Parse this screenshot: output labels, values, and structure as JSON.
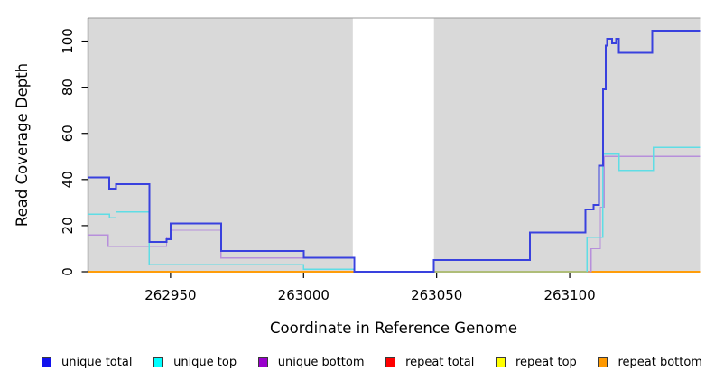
{
  "chart_data": {
    "type": "line",
    "step": "after",
    "title": "",
    "xlabel": "Coordinate in Reference Genome",
    "ylabel": "Read Coverage Depth",
    "xlim": [
      262919,
      263149
    ],
    "ylim": [
      0,
      110
    ],
    "x_ticks": [
      "262950",
      "263000",
      "263050",
      "263100"
    ],
    "x_tick_values": [
      262950,
      263000,
      263050,
      263100
    ],
    "y_ticks": [
      "0",
      "20",
      "40",
      "60",
      "80",
      "100"
    ],
    "y_tick_values": [
      0,
      20,
      40,
      60,
      80,
      100
    ],
    "grid": "off",
    "legend_position": "bottom",
    "plot_background": "#d9d9d9",
    "gap_region": {
      "x_start": 263018.5,
      "x_end": 263049,
      "fill": "#ffffff"
    },
    "draw_order": [
      "repeat total",
      "repeat top",
      "repeat bottom",
      "unique bottom",
      "unique top",
      "unique total"
    ],
    "series": [
      {
        "name": "unique total",
        "line_color": "#3941de",
        "legend_color": "#1111ee",
        "width": 2,
        "points": [
          [
            262919,
            41
          ],
          [
            262927,
            36
          ],
          [
            262929.5,
            38
          ],
          [
            262942,
            13
          ],
          [
            262948.5,
            14
          ],
          [
            262950,
            21
          ],
          [
            262969,
            9
          ],
          [
            263000,
            6
          ],
          [
            263019,
            0
          ],
          [
            263049,
            5
          ],
          [
            263085,
            17
          ],
          [
            263106,
            27
          ],
          [
            263109,
            29
          ],
          [
            263111,
            46
          ],
          [
            263112.5,
            79
          ],
          [
            263113.5,
            98
          ],
          [
            263114,
            101
          ],
          [
            263116,
            99
          ],
          [
            263117.5,
            101
          ],
          [
            263118.5,
            95
          ],
          [
            263131,
            104.5
          ],
          [
            263149,
            104.5
          ]
        ]
      },
      {
        "name": "unique top",
        "line_color": "#5fdde5",
        "legend_color": "#00ffff",
        "width": 1.4,
        "points": [
          [
            262919,
            25
          ],
          [
            262927,
            23.5
          ],
          [
            262929.5,
            26
          ],
          [
            262942,
            3
          ],
          [
            263000,
            1
          ],
          [
            263019,
            0
          ],
          [
            263106.5,
            15
          ],
          [
            263112.5,
            51
          ],
          [
            263118.5,
            44
          ],
          [
            263131.5,
            54
          ],
          [
            263149,
            54
          ]
        ]
      },
      {
        "name": "unique bottom",
        "line_color": "#b78fdb",
        "legend_color": "#9900cc",
        "width": 1.4,
        "points": [
          [
            262919,
            16
          ],
          [
            262926.5,
            11
          ],
          [
            262948.5,
            15
          ],
          [
            262950,
            18
          ],
          [
            262969,
            6
          ],
          [
            263019,
            0
          ],
          [
            263049,
            0
          ],
          [
            263108,
            10
          ],
          [
            263111.5,
            28
          ],
          [
            263113,
            50
          ],
          [
            263149,
            50
          ]
        ]
      },
      {
        "name": "repeat total",
        "line_color": "#dd2222",
        "legend_color": "#ff0000",
        "width": 1.4,
        "points": [
          [
            262919,
            0
          ],
          [
            263149,
            0
          ]
        ]
      },
      {
        "name": "repeat top",
        "line_color": "#f2f20a",
        "legend_color": "#ffff00",
        "width": 1.4,
        "points": [
          [
            262919,
            0
          ],
          [
            263149,
            0
          ]
        ]
      },
      {
        "name": "repeat bottom",
        "line_color": "#ff9d0a",
        "legend_color": "#ff9900",
        "width": 1.8,
        "points": [
          [
            262919,
            0
          ],
          [
            263149,
            0
          ]
        ]
      }
    ]
  }
}
